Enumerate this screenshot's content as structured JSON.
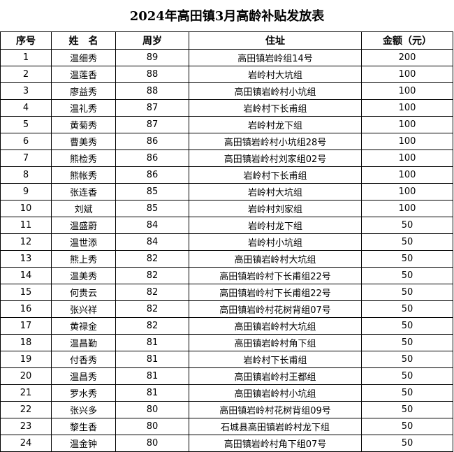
{
  "title": "2024年高田镇3月高龄补贴发放表",
  "headers": [
    "序号",
    "姓　名",
    "周岁",
    "住址",
    "金额（元）"
  ],
  "rows": [
    [
      "1",
      "温细秀",
      "89",
      "高田镇岩岭组14号",
      "200"
    ],
    [
      "2",
      "温莲香",
      "88",
      "岩岭村大坑组",
      "100"
    ],
    [
      "3",
      "廖益秀",
      "88",
      "高田镇岩岭村小坑组",
      "100"
    ],
    [
      "4",
      "温礼秀",
      "87",
      "岩岭村下长甫组",
      "100"
    ],
    [
      "5",
      "黄菊秀",
      "87",
      "岩岭村龙下组",
      "100"
    ],
    [
      "6",
      "曹美秀",
      "86",
      "高田镇岩岭村小坑组28号",
      "100"
    ],
    [
      "7",
      "熊检秀",
      "86",
      "高田镇岩岭村刘家组02号",
      "100"
    ],
    [
      "8",
      "熊帐秀",
      "86",
      "岩岭村下长甫组",
      "100"
    ],
    [
      "9",
      "张连香",
      "85",
      "岩岭村大坑组",
      "100"
    ],
    [
      "10",
      "刘斌",
      "85",
      "岩岭村刘家组",
      "100"
    ],
    [
      "11",
      "温盛蔚",
      "84",
      "岩岭村龙下组",
      "50"
    ],
    [
      "12",
      "温世添",
      "84",
      "岩岭村小坑组",
      "50"
    ],
    [
      "13",
      "熊上秀",
      "82",
      "高田镇岩岭村大坑组",
      "50"
    ],
    [
      "14",
      "温美秀",
      "82",
      "高田镇岩岭村下长甫组22号",
      "50"
    ],
    [
      "15",
      "何贵云",
      "82",
      "高田镇岩岭村下长甫组22号",
      "50"
    ],
    [
      "16",
      "张兴祥",
      "82",
      "高田镇岩岭村花树背组07号",
      "50"
    ],
    [
      "17",
      "黄禄金",
      "82",
      "高田镇岩岭村大坑组",
      "50"
    ],
    [
      "18",
      "温昌勤",
      "81",
      "高田镇岩岭村角下组",
      "50"
    ],
    [
      "19",
      "付香秀",
      "81",
      "岩岭村下长甫组",
      "50"
    ],
    [
      "20",
      "温昌秀",
      "81",
      "高田镇岩岭村王都组",
      "50"
    ],
    [
      "21",
      "罗水秀",
      "81",
      "高田镇岩岭村小坑组",
      "50"
    ],
    [
      "22",
      "张兴多",
      "80",
      "高田镇岩岭村花树背组09号",
      "50"
    ],
    [
      "23",
      "黎生香",
      "80",
      "石城县高田镇岩岭村龙下组",
      "50"
    ],
    [
      "24",
      "温金钟",
      "80",
      "高田镇岩岭村角下组07号",
      "50"
    ]
  ]
}
